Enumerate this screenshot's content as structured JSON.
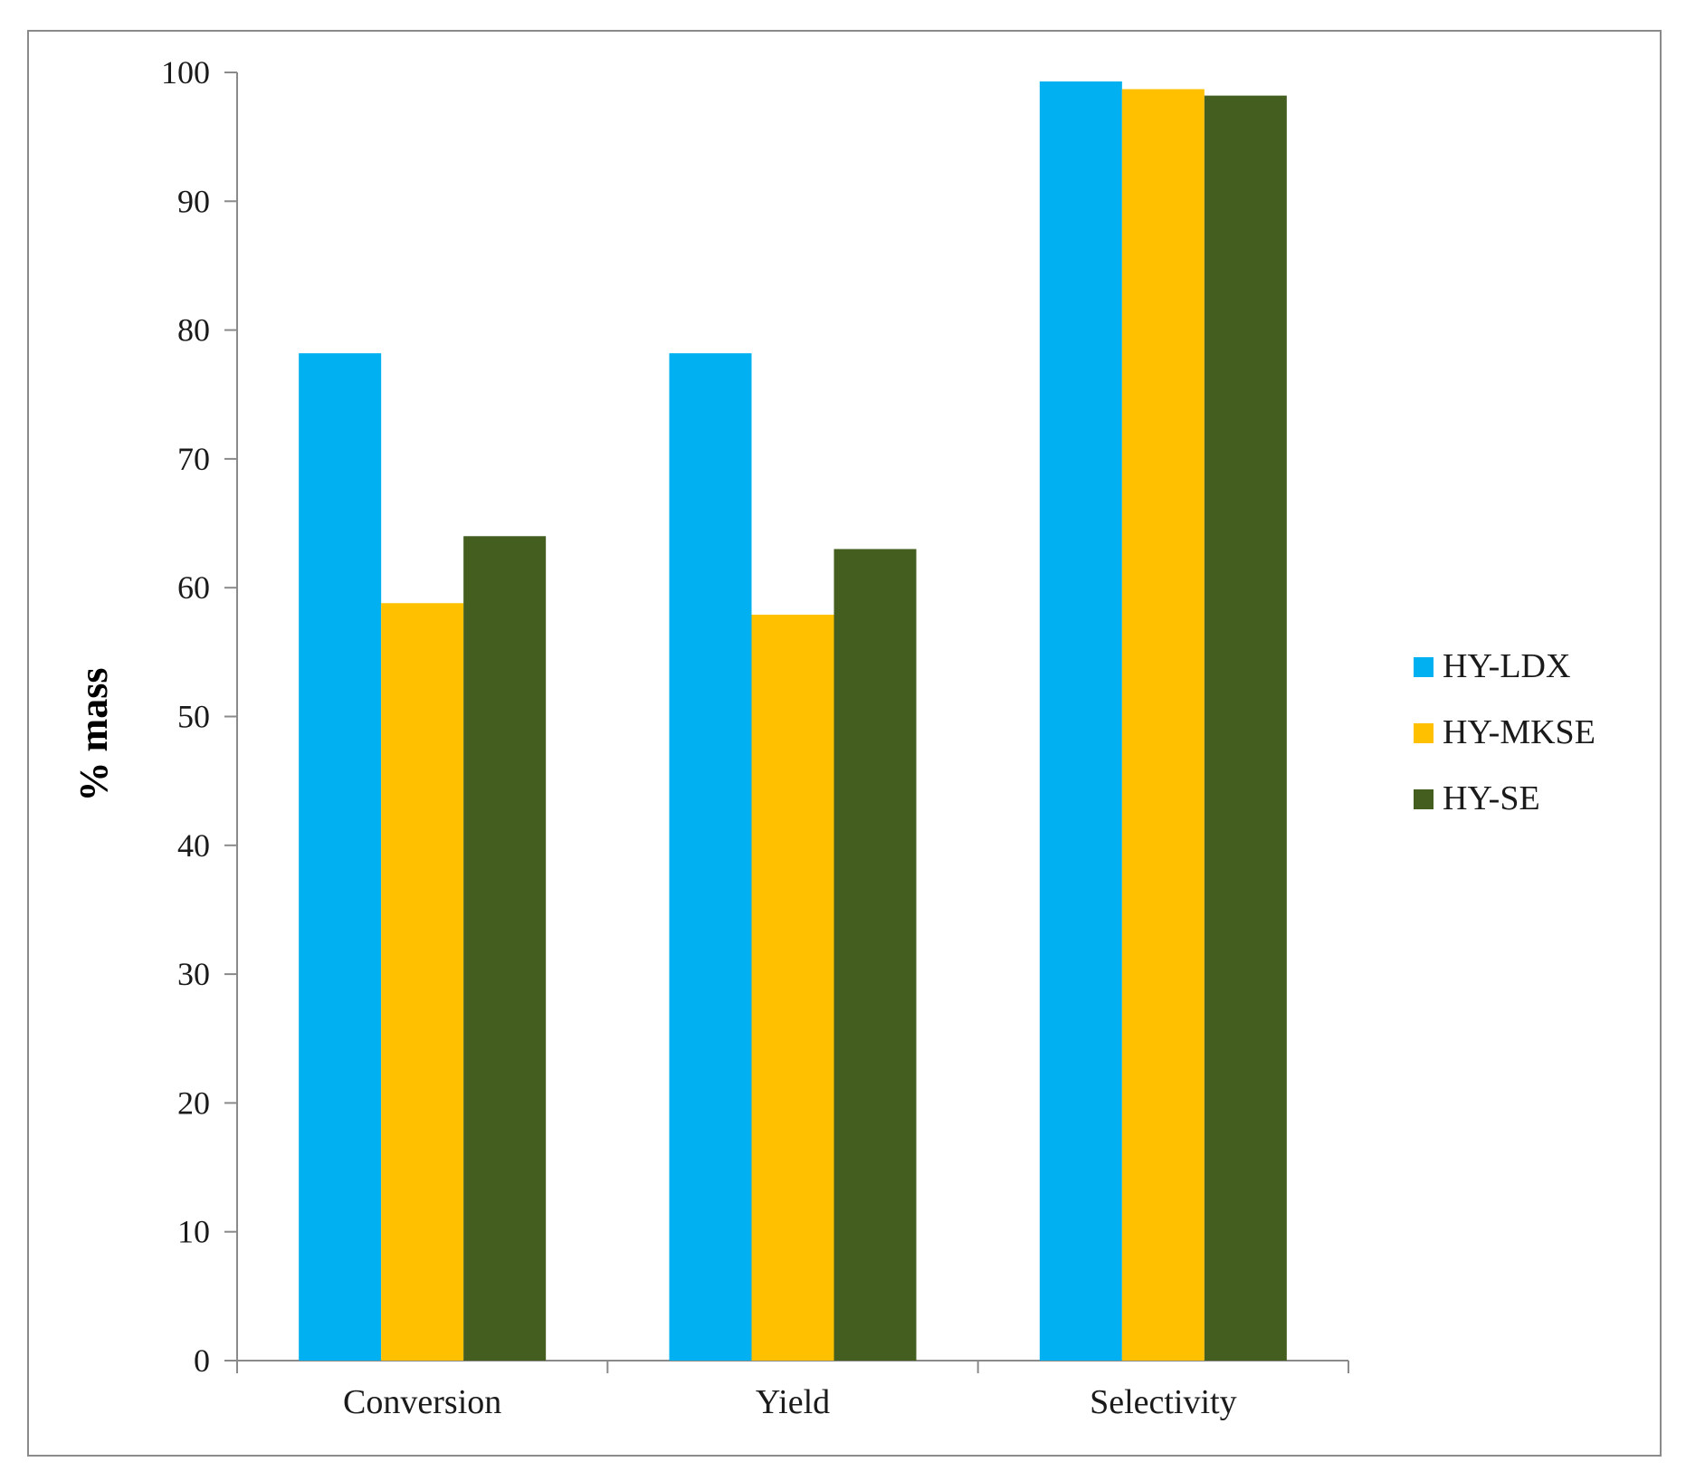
{
  "chart_data": {
    "type": "bar",
    "title": "",
    "xlabel": "",
    "ylabel": "% mass",
    "ylim": [
      0,
      100
    ],
    "yticks": [
      "0",
      "10",
      "20",
      "30",
      "40",
      "50",
      "60",
      "70",
      "80",
      "90",
      "100"
    ],
    "categories": [
      "Conversion",
      "Yield",
      "Selectivity"
    ],
    "series": [
      {
        "name": "HY-LDX",
        "color": "#00b0f0",
        "values": [
          78.2,
          78.2,
          99.3
        ]
      },
      {
        "name": "HY-MKSE",
        "color": "#ffc000",
        "values": [
          58.8,
          57.9,
          98.7
        ]
      },
      {
        "name": "HY-SE",
        "color": "#435e1f",
        "values": [
          64.0,
          63.0,
          98.2
        ]
      }
    ],
    "legend_position": "right",
    "grid": false
  }
}
